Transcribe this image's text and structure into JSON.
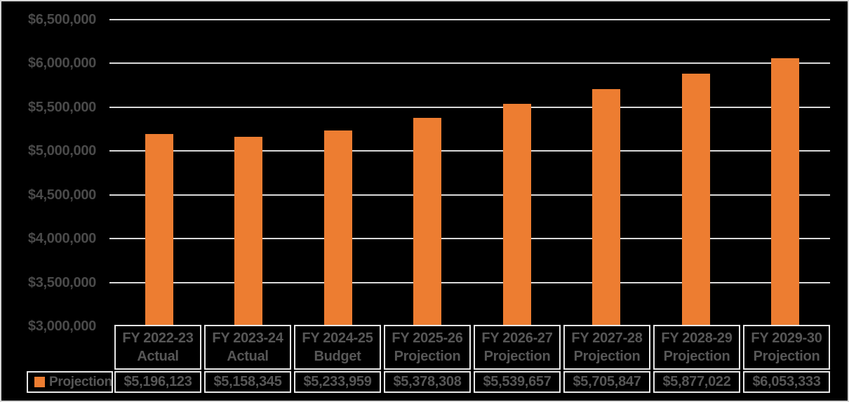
{
  "chart_data": {
    "type": "bar",
    "title": "",
    "xlabel": "",
    "ylabel": "",
    "grid": true,
    "legend_position": "bottom-left-table",
    "legend": {
      "label": "Projection"
    },
    "categories": [
      [
        "FY 2022-23",
        "Actual"
      ],
      [
        "FY 2023-24",
        "Actual"
      ],
      [
        "FY 2024-25",
        "Budget"
      ],
      [
        "FY 2025-26",
        "Projection"
      ],
      [
        "FY 2026-27",
        "Projection"
      ],
      [
        "FY 2027-28",
        "Projection"
      ],
      [
        "FY 2028-29",
        "Projection"
      ],
      [
        "FY 2029-30",
        "Projection"
      ]
    ],
    "values": [
      5196123,
      5158345,
      5233959,
      5378308,
      5539657,
      5705847,
      5877022,
      6053333
    ],
    "value_labels": [
      "$5,196,123",
      "$5,158,345",
      "$5,233,959",
      "$5,378,308",
      "$5,539,657",
      "$5,705,847",
      "$5,877,022",
      "$6,053,333"
    ],
    "y_axis": {
      "min": 3000000,
      "max": 6500000,
      "step": 500000,
      "tick_labels": [
        "$6,500,000",
        "$6,000,000",
        "$5,500,000",
        "$5,000,000",
        "$4,500,000",
        "$4,000,000",
        "$3,500,000",
        "$3,000,000"
      ]
    }
  },
  "colors": {
    "background": "#000000",
    "bar": "#ED7D31",
    "gridline": "#D9D9D9",
    "table_border": "#E8E8E8",
    "axis_text": "#4A4A4A",
    "table_text": "#575757"
  }
}
